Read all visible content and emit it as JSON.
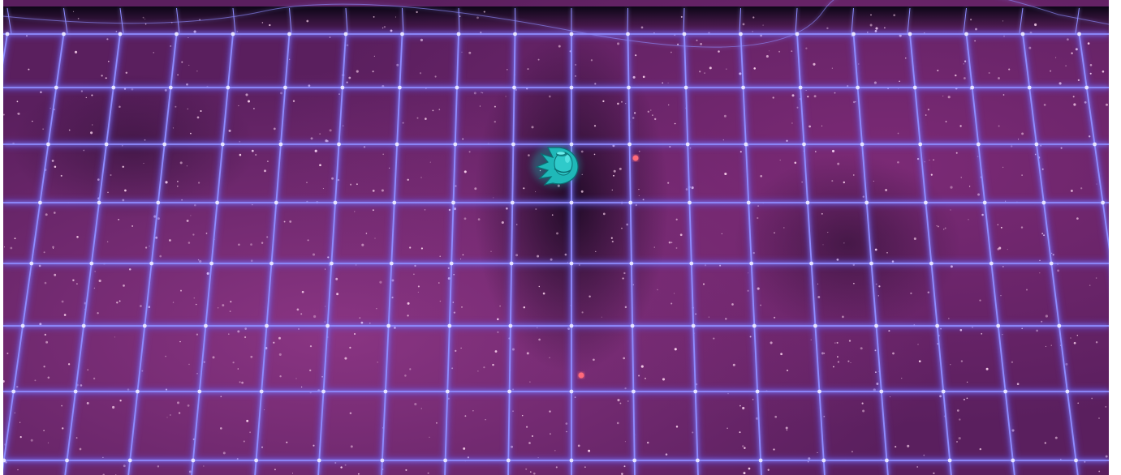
{
  "scene": {
    "description_hidden": false,
    "colors": {
      "nebula_base": "#5a1f5e",
      "nebula_light": "#8a3a86",
      "nebula_dark": "#1e0a28",
      "horizon_dark": "#0c0616",
      "grid_line": "#8f8cff",
      "grid_glow": "#5a5cff",
      "grid_node": "#e6e4ff",
      "ship_primary": "#1fb8b8",
      "ship_highlight": "#6ff0ee",
      "ship_shadow": "#0b6f73",
      "star": "#ffd9f2",
      "red_orb": "#ff6a7a"
    },
    "icons": {
      "player": "player-spaceship-icon",
      "enemy_orb": "red-orb-icon"
    }
  }
}
